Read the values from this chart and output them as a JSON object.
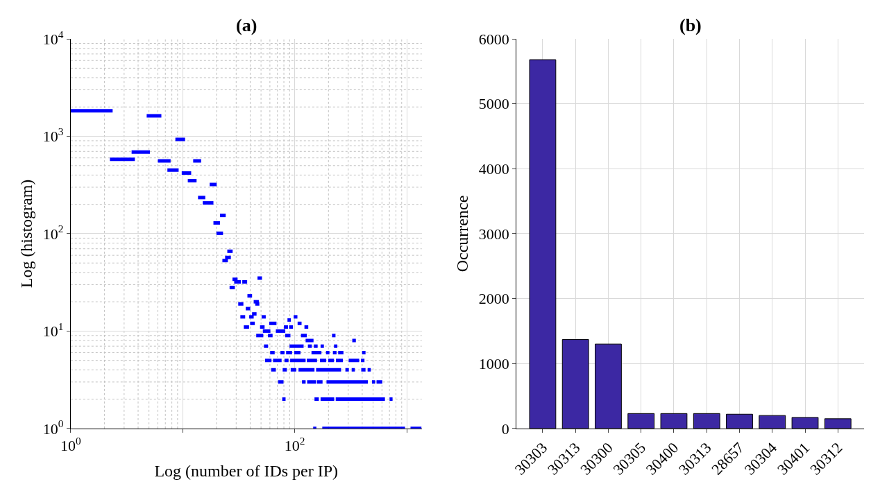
{
  "chart_data": [
    {
      "type": "line",
      "title": "(a)",
      "xlabel": "Log (number of IDs per IP)",
      "ylabel": "Log (histogram)",
      "log": "xy",
      "grid": true,
      "line_style": "solid",
      "marker": "none",
      "xlim": [
        1,
        1360
      ],
      "ylim": [
        1,
        10000
      ],
      "xticks": [
        {
          "value": 1,
          "label": "10$^{0}$"
        },
        {
          "value": 10,
          "label": null
        },
        {
          "value": 100,
          "label": "10$^{2}$"
        },
        {
          "value": 1000,
          "label": null
        }
      ],
      "yticks": [
        {
          "value": 1,
          "label": "10$^{0}$"
        },
        {
          "value": 10,
          "label": "10$^{1}$"
        },
        {
          "value": 100,
          "label": "10$^{2}$"
        },
        {
          "value": 1000,
          "label": "10$^{3}$"
        },
        {
          "value": 10000,
          "label": "10$^{4}$"
        }
      ],
      "series": [
        {
          "color": "#0000ff",
          "x": [
            1,
            2.37,
            null,
            2.24,
            3.74,
            null,
            3.5,
            5.1,
            null,
            4.77,
            6.45,
            null,
            6.0,
            7.8,
            null,
            7.3,
            9.2,
            null,
            8.6,
            10.5,
            null,
            9.8,
            11.9,
            null,
            11.1,
            13.3,
            null,
            12.4,
            14.6,
            null,
            13.7,
            15.9,
            null,
            15.1,
            18.8,
            null,
            17.4,
            20.1,
            null,
            18.8,
            21.5,
            null,
            20,
            22.9,
            null,
            21.5,
            24.2,
            null,
            25,
            27.9,
            null,
            23.9,
            26.9,
            null,
            22.6,
            25.3,
            null,
            27.8,
            30.9,
            null,
            28.8,
            33,
            null,
            34,
            37.6,
            null,
            26.2,
            29.2,
            null,
            46.5,
            51,
            null,
            37.8,
            41.6,
            null,
            31.3,
            34.8,
            null,
            43,
            47.8,
            null,
            44.4,
            48.3,
            null,
            36.5,
            40.1,
            null,
            32.7,
            36.1,
            null,
            39.2,
            43,
            null,
            41.6,
            45.6,
            null,
            50.6,
            55.1,
            null,
            35.1,
            39.1,
            null,
            40,
            44,
            null,
            49,
            53.8,
            null,
            59.2,
            68.7,
            null,
            51.9,
            60.6,
            null,
            67.8,
            82.3,
            null,
            80,
            87,
            null,
            86.1,
            92.3,
            null,
            89,
            96.4,
            null,
            97.8,
            105.6,
            null,
            106,
            115,
            null,
            122,
            132
          ],
          "values": [
            1830,
            1830,
            null,
            580,
            580,
            null,
            690,
            690,
            null,
            1620,
            1620,
            null,
            560,
            560,
            null,
            450,
            450,
            null,
            930,
            930,
            null,
            420,
            420,
            null,
            350,
            350,
            null,
            560,
            560,
            null,
            235,
            235,
            null,
            207,
            207,
            null,
            320,
            320,
            null,
            129,
            129,
            null,
            101,
            101,
            null,
            154,
            154,
            null,
            66,
            66,
            null,
            57,
            57,
            null,
            53,
            53,
            null,
            34,
            34,
            null,
            32,
            32,
            null,
            32,
            32,
            null,
            28,
            28,
            null,
            35,
            35,
            null,
            23,
            23,
            null,
            19,
            19,
            null,
            20,
            20,
            null,
            19,
            19,
            null,
            17,
            17,
            null,
            14,
            14,
            null,
            14,
            14,
            null,
            15,
            15,
            null,
            14,
            14,
            null,
            11,
            11,
            null,
            12,
            12,
            null,
            11,
            11,
            null,
            12,
            12,
            null,
            10,
            10,
            null,
            10,
            10,
            null,
            11,
            11,
            null,
            13,
            13,
            null,
            11,
            11,
            null,
            14,
            14,
            null,
            12,
            12,
            null,
            11,
            11
          ]
        },
        {
          "color": "#0000ff",
          "x": [
            45.3,
            52.4,
            null,
            57.7,
            63.4,
            null,
            82.2,
            91.5,
            null,
            113.6,
            128,
            null,
            215,
            231,
            null,
            125,
            147,
            null,
            326,
            351,
            null,
            53.1,
            57.8,
            null,
            89.8,
            120,
            null,
            131,
            142,
            null,
            148,
            160,
            null,
            170,
            182,
            null,
            224,
            240,
            null,
            60.3,
            66.2,
            null,
            74.5,
            81,
            null,
            83.7,
            94.6,
            null,
            99,
            112.5,
            null,
            141,
            173,
            null,
            190,
            204,
            null,
            219,
            236,
            null,
            244,
            272,
            null,
            399,
            428
          ],
          "values": [
            9,
            9,
            null,
            9,
            9,
            null,
            9,
            9,
            null,
            9,
            9,
            null,
            9,
            9,
            null,
            8,
            8,
            null,
            8,
            8,
            null,
            7,
            7,
            null,
            7,
            7,
            null,
            7,
            7,
            null,
            7,
            7,
            null,
            7,
            7,
            null,
            7,
            7,
            null,
            6,
            6,
            null,
            6,
            6,
            null,
            6,
            6,
            null,
            6,
            6,
            null,
            6,
            6,
            null,
            6,
            6,
            null,
            6,
            6,
            null,
            6,
            6,
            null,
            6,
            6
          ]
        },
        {
          "color": "#0000ff",
          "x": [
            54.3,
            62,
            null,
            64,
            76.3,
            null,
            81,
            88,
            null,
            91,
            125,
            null,
            128,
            158,
            null,
            168,
            191,
            null,
            199,
            224,
            null,
            233,
            269,
            null,
            303,
            376,
            null,
            390,
            419,
            null,
            61.6,
            67.8,
            null,
            78,
            85,
            null,
            92,
            103,
            null,
            108,
            150,
            null,
            155,
            259,
            null,
            283,
            304,
            null,
            322,
            344,
            null,
            392,
            428,
            null,
            447,
            477
          ],
          "values": [
            5,
            5,
            null,
            5,
            5,
            null,
            5,
            5,
            null,
            5,
            5,
            null,
            5,
            5,
            null,
            5,
            5,
            null,
            5,
            5,
            null,
            5,
            5,
            null,
            5,
            5,
            null,
            5,
            5,
            null,
            4,
            4,
            null,
            4,
            4,
            null,
            4,
            4,
            null,
            4,
            4,
            null,
            4,
            4,
            null,
            4,
            4,
            null,
            4,
            4,
            null,
            4,
            4,
            null,
            4,
            4
          ]
        },
        {
          "color": "#0000ff",
          "x": [
            71,
            79.4,
            null,
            116,
            125,
            null,
            129,
            155,
            null,
            158,
            177,
            null,
            192,
            449,
            null,
            489,
            522,
            null,
            537,
            604,
            null,
            77.3,
            82.8,
            null,
            150,
            164,
            null,
            170,
            225,
            null,
            232,
            638,
            null,
            702,
            746,
            null,
            146,
            156,
            null,
            176,
            964,
            null,
            1079,
            1352
          ],
          "values": [
            3,
            3,
            null,
            3,
            3,
            null,
            3,
            3,
            null,
            3,
            3,
            null,
            3,
            3,
            null,
            3,
            3,
            null,
            3,
            3,
            null,
            2,
            2,
            null,
            2,
            2,
            null,
            2,
            2,
            null,
            2,
            2,
            null,
            2,
            2,
            null,
            1,
            1,
            null,
            1,
            1,
            null,
            1,
            1
          ]
        }
      ]
    },
    {
      "type": "bar",
      "title": "(b)",
      "ylabel": "Occurrence",
      "grid": true,
      "categories": [
        "30303",
        "30313",
        "30300",
        "30305",
        "30400",
        "30313",
        "28657",
        "30304",
        "30401",
        "30312"
      ],
      "ylim": [
        0,
        6000
      ],
      "yticks": [
        0,
        1000,
        2000,
        3000,
        4000,
        5000,
        6000
      ],
      "series": [
        {
          "color": "#3c28a3",
          "values": [
            5680,
            1370,
            1300,
            230,
            230,
            230,
            220,
            200,
            170,
            150
          ]
        }
      ]
    }
  ]
}
